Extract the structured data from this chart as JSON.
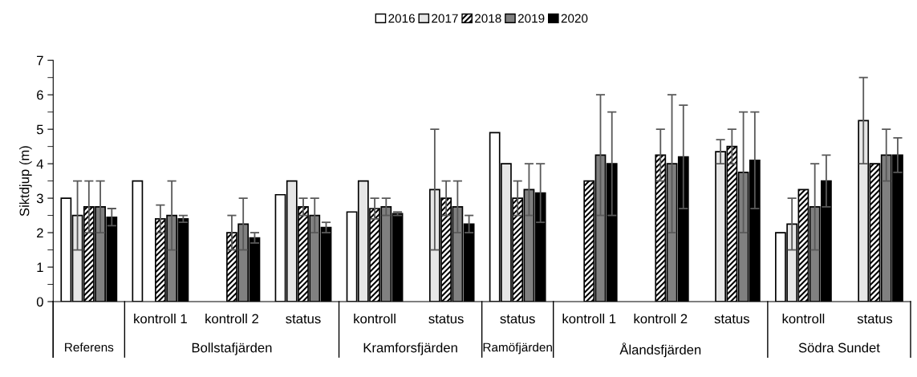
{
  "chart_data": {
    "type": "bar",
    "ylabel": "Siktdjup (m)",
    "categories": [
      null,
      "kontroll 1",
      "kontroll 2",
      "status",
      "kontroll",
      "status",
      "status",
      "kontroll 1",
      "kontroll 2",
      "status",
      "kontroll",
      "status"
    ],
    "annotations": [
      "Referens",
      "Bollstafjärden",
      "Kramforsfjärden",
      "Ramöfjärden",
      "Ålandsfjärden",
      "Södra Sundet"
    ],
    "series": [
      {
        "name": "2016",
        "color": "#ffffff",
        "values": [
          3.0,
          3.5,
          null,
          3.1,
          2.6,
          null,
          4.9,
          null,
          null,
          null,
          2.0,
          null
        ]
      },
      {
        "name": "2017",
        "color": "#e6e6e6",
        "values": [
          2.5,
          null,
          null,
          3.5,
          3.5,
          3.25,
          4.0,
          null,
          null,
          4.35,
          2.25,
          5.25
        ],
        "errors": [
          [
            1.5,
            3.5
          ],
          null,
          null,
          null,
          null,
          [
            1.5,
            5.0
          ],
          null,
          null,
          null,
          [
            4.0,
            4.7
          ],
          [
            1.5,
            3.0
          ],
          [
            4.0,
            6.5
          ]
        ]
      },
      {
        "name": "2018",
        "color": "#000000",
        "values": [
          2.75,
          2.4,
          2.0,
          2.75,
          2.7,
          3.0,
          3.0,
          3.5,
          4.25,
          4.5,
          3.25,
          4.0
        ],
        "errors": [
          [
            2.0,
            3.5
          ],
          [
            2.0,
            2.8
          ],
          [
            1.5,
            2.5
          ],
          [
            2.5,
            3.0
          ],
          [
            2.4,
            3.0
          ],
          [
            2.5,
            3.5
          ],
          [
            2.5,
            3.5
          ],
          null,
          [
            3.5,
            5.0
          ],
          [
            4.0,
            5.0
          ],
          null,
          null
        ]
      },
      {
        "name": "2019",
        "color": "#808080",
        "values": [
          2.75,
          2.5,
          2.25,
          2.5,
          2.75,
          2.75,
          3.25,
          4.25,
          4.0,
          3.75,
          2.75,
          4.25
        ],
        "errors": [
          [
            2.0,
            3.5
          ],
          [
            1.5,
            3.5
          ],
          [
            1.5,
            3.0
          ],
          [
            2.0,
            3.0
          ],
          [
            2.5,
            3.0
          ],
          [
            2.0,
            3.5
          ],
          [
            2.5,
            4.0
          ],
          [
            2.5,
            6.0
          ],
          [
            2.0,
            6.0
          ],
          [
            2.0,
            5.5
          ],
          [
            1.5,
            4.0
          ],
          [
            3.5,
            5.0
          ]
        ]
      },
      {
        "name": "2020",
        "color": "#000000",
        "values": [
          2.45,
          2.4,
          1.85,
          2.15,
          2.55,
          2.25,
          3.15,
          4.0,
          4.2,
          4.1,
          3.5,
          4.25
        ],
        "errors": [
          [
            2.2,
            2.7
          ],
          [
            2.3,
            2.5
          ],
          [
            1.7,
            2.0
          ],
          [
            2.0,
            2.3
          ],
          [
            2.5,
            2.6
          ],
          [
            2.0,
            2.5
          ],
          [
            2.3,
            4.0
          ],
          [
            2.5,
            5.5
          ],
          [
            2.7,
            5.7
          ],
          [
            2.7,
            5.5
          ],
          [
            2.75,
            4.25
          ],
          [
            3.75,
            4.75
          ]
        ]
      }
    ],
    "ylim": [
      0,
      7
    ],
    "yticks": [
      0,
      1,
      2,
      3,
      4,
      5,
      6,
      7
    ],
    "grid": false,
    "legend": "top"
  }
}
